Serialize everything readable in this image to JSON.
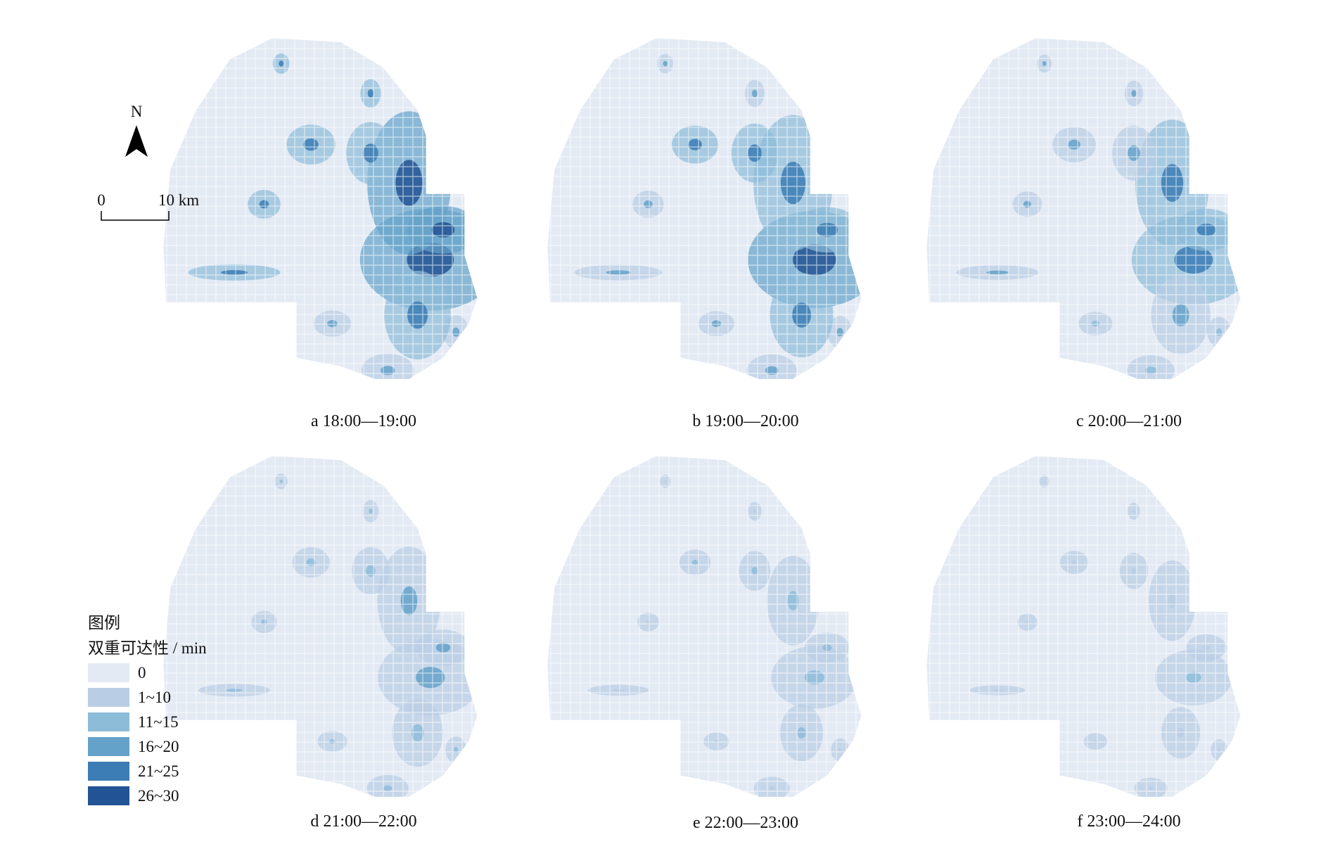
{
  "north": "N",
  "scale_bar": {
    "start": "0",
    "end": "10 km"
  },
  "legend": {
    "title": "图例",
    "subtitle": "双重可达性 / min",
    "items": [
      {
        "label": "0",
        "color": "#e3eaf4"
      },
      {
        "label": "1~10",
        "color": "#b9cde4"
      },
      {
        "label": "11~15",
        "color": "#8dbcd9"
      },
      {
        "label": "16~20",
        "color": "#64a2c9"
      },
      {
        "label": "21~25",
        "color": "#3b7db4"
      },
      {
        "label": "26~30",
        "color": "#225394"
      }
    ]
  },
  "panels": [
    {
      "caption": "a 18:00—19:00"
    },
    {
      "caption": "b 19:00—20:00"
    },
    {
      "caption": "c 20:00—21:00"
    },
    {
      "caption": "d 21:00—22:00"
    },
    {
      "caption": "e 22:00—23:00"
    },
    {
      "caption": "f 23:00—24:00"
    }
  ]
}
